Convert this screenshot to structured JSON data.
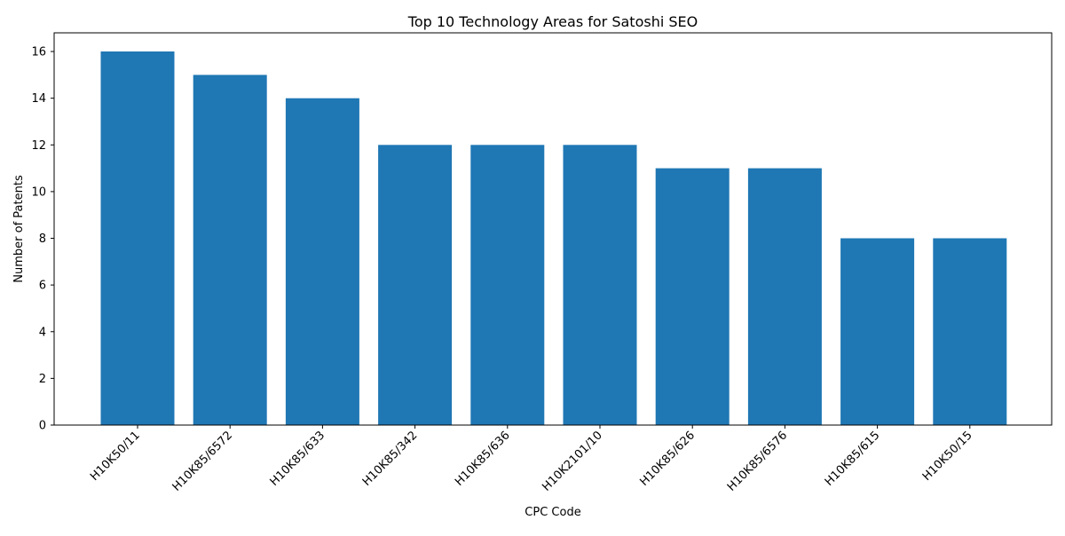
{
  "chart_data": {
    "type": "bar",
    "title": "Top 10 Technology Areas for Satoshi SEO",
    "xlabel": "CPC Code",
    "ylabel": "Number of Patents",
    "categories": [
      "H10K50/11",
      "H10K85/6572",
      "H10K85/633",
      "H10K85/342",
      "H10K85/636",
      "H10K2101/10",
      "H10K85/626",
      "H10K85/6576",
      "H10K85/615",
      "H10K50/15"
    ],
    "values": [
      16,
      15,
      14,
      12,
      12,
      12,
      11,
      11,
      8,
      8
    ],
    "ylim": [
      0,
      16.8
    ],
    "yticks": [
      "0",
      "2",
      "4",
      "6",
      "8",
      "10",
      "12",
      "14",
      "16"
    ],
    "bar_color": "#1f77b4",
    "grid": false,
    "legend": "none"
  }
}
